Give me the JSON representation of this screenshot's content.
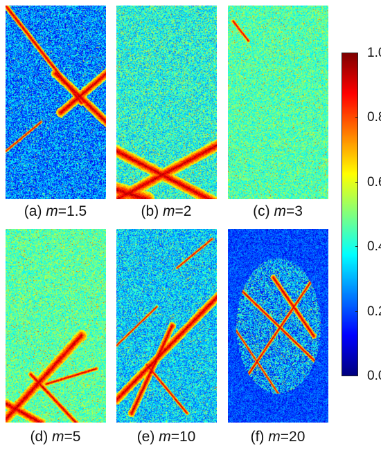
{
  "panels": [
    {
      "label_prefix": "(a) ",
      "var": "m",
      "value": "=1.5",
      "base": 0.25,
      "spread": 0.18,
      "crack": "a"
    },
    {
      "label_prefix": "(b) ",
      "var": "m",
      "value": "=2",
      "base": 0.4,
      "spread": 0.16,
      "crack": "b"
    },
    {
      "label_prefix": "(c) ",
      "var": "m",
      "value": "=3",
      "base": 0.45,
      "spread": 0.12,
      "crack": "c"
    },
    {
      "label_prefix": "(d) ",
      "var": "m",
      "value": "=5",
      "base": 0.46,
      "spread": 0.12,
      "crack": "d"
    },
    {
      "label_prefix": "(e) ",
      "var": "m",
      "value": "=10",
      "base": 0.33,
      "spread": 0.16,
      "crack": "e"
    },
    {
      "label_prefix": "(f) ",
      "var": "m",
      "value": "=20",
      "base": 0.28,
      "spread": 0.22,
      "crack": "f"
    }
  ],
  "colorbar": {
    "colormap": "jet",
    "ticks": [
      "1.0",
      "0.8",
      "0.6",
      "0.4",
      "0.2",
      "0.0"
    ],
    "min": 0.0,
    "max": 1.0
  }
}
